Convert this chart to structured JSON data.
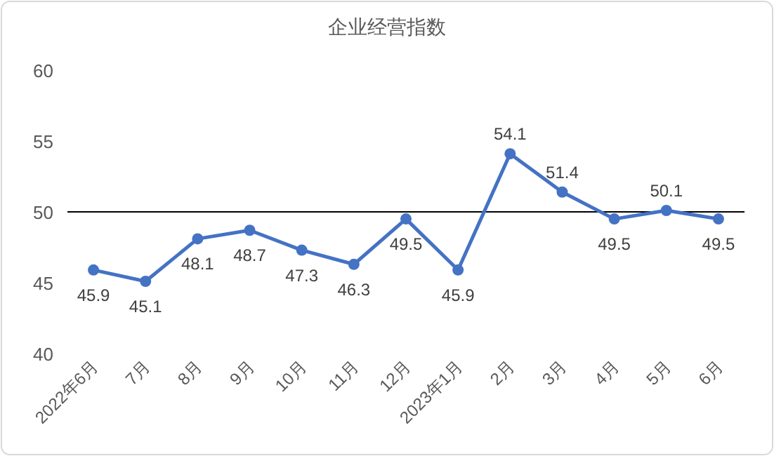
{
  "chart_data": {
    "type": "line",
    "title": "企业经营指数",
    "categories": [
      "2022年6月",
      "7月",
      "8月",
      "9月",
      "10月",
      "11月",
      "12月",
      "2023年1月",
      "2月",
      "3月",
      "4月",
      "5月",
      "6月"
    ],
    "values": [
      45.9,
      45.1,
      48.1,
      48.7,
      47.3,
      46.3,
      49.5,
      45.9,
      54.1,
      51.4,
      49.5,
      50.1,
      49.5
    ],
    "color": "#4472c4",
    "ylim": [
      40,
      60
    ],
    "yticks": [
      40,
      45,
      50,
      55,
      60
    ],
    "ref_lines": [
      {
        "axis": "y",
        "value": 50,
        "color": "#000000"
      }
    ],
    "data_labels": true,
    "marker": "circle",
    "line_style": "solid"
  }
}
